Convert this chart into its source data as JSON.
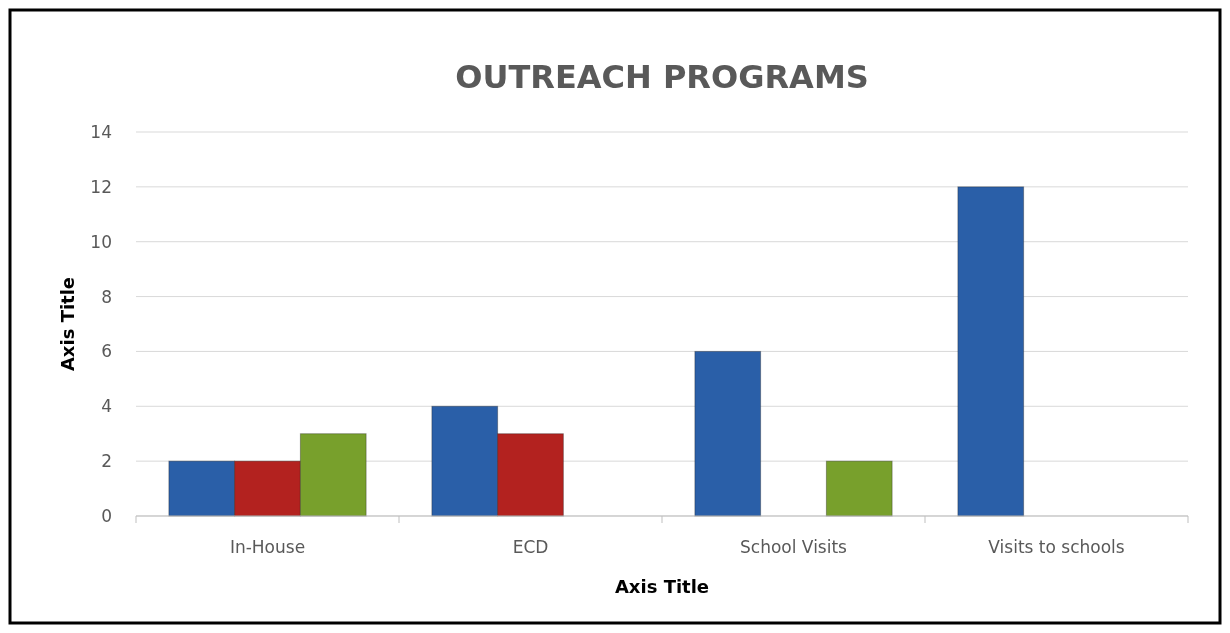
{
  "chart_data": {
    "type": "bar",
    "title": "OUTREACH PROGRAMS",
    "xlabel": "Axis Title",
    "ylabel": "Axis Title",
    "categories": [
      "In-House",
      "ECD",
      "School Visits",
      "Visits to schools"
    ],
    "series": [
      {
        "color": "#2a5fa8",
        "values": [
          2,
          4,
          6,
          12
        ]
      },
      {
        "color": "#b3221f",
        "values": [
          2,
          3,
          null,
          null
        ]
      },
      {
        "color": "#78a02c",
        "values": [
          3,
          null,
          2,
          null
        ]
      }
    ],
    "ylim": [
      0,
      14
    ],
    "yticks": [
      0,
      2,
      4,
      6,
      8,
      10,
      12,
      14
    ],
    "grid": "y"
  }
}
